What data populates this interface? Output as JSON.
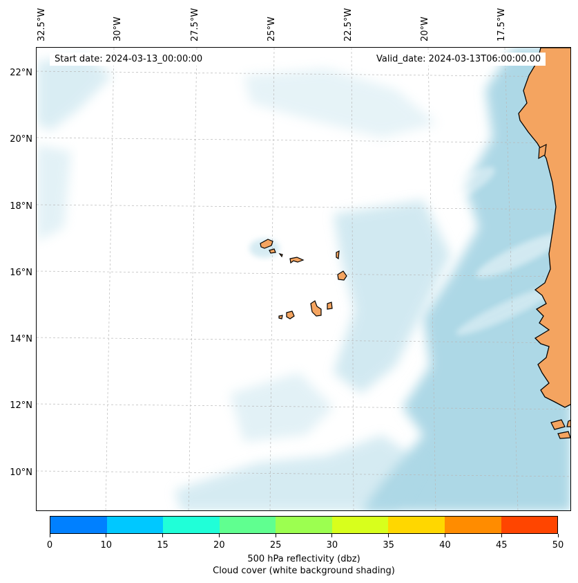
{
  "annotations": {
    "start_date": "Start date: 2024-03-13_00:00:00",
    "valid_date": "Valid_date: 2024-03-13T06:00:00.00"
  },
  "lon_labels": [
    "32.5°W",
    "30°W",
    "27.5°W",
    "25°W",
    "22.5°W",
    "20°W",
    "17.5°W"
  ],
  "lat_labels": [
    "22°N",
    "20°N",
    "18°N",
    "16°N",
    "14°N",
    "12°N",
    "10°N"
  ],
  "colorbar": {
    "ticks": [
      "0",
      "10",
      "15",
      "20",
      "25",
      "30",
      "35",
      "40",
      "45",
      "50"
    ],
    "colors": [
      "#0080ff",
      "#00c8ff",
      "#20ffd8",
      "#60ff90",
      "#9cff50",
      "#d8ff1c",
      "#ffd700",
      "#ff8c00",
      "#ff4500"
    ],
    "label_line1": "500 hPa reflectivity (dbz)",
    "label_line2": "Cloud cover (white background shading)"
  },
  "colors": {
    "land": "#f4a460",
    "cloud": "#add8e6",
    "coastline": "#000000"
  }
}
